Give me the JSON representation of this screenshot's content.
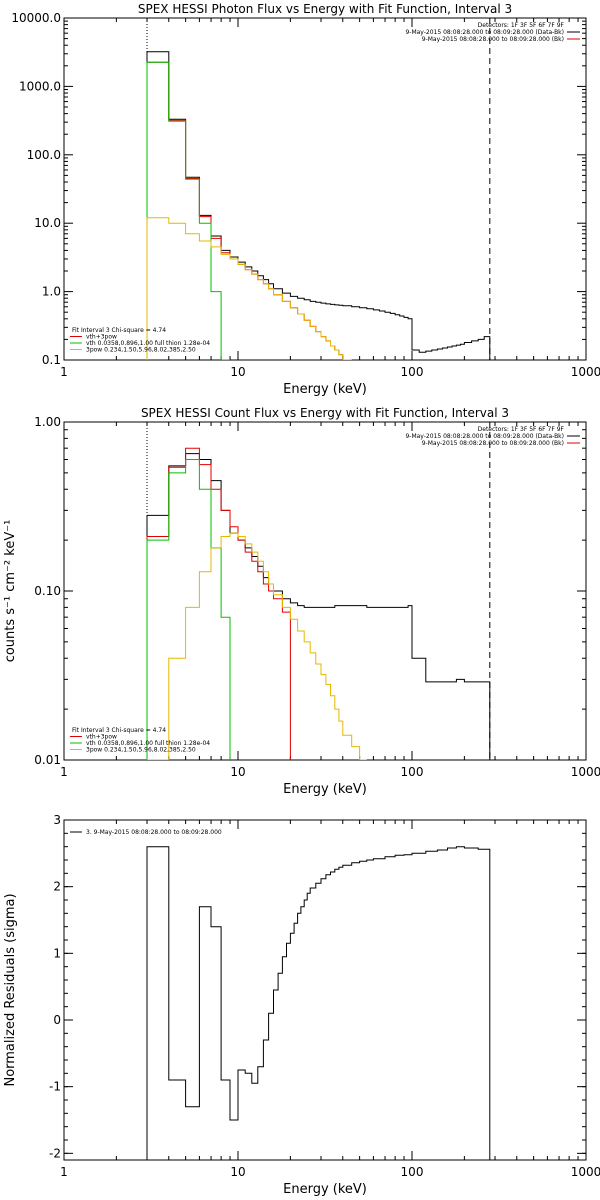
{
  "chart_data": [
    {
      "type": "line",
      "title": "SPEX HESSI Photon Flux vs Energy with Fit Function, Interval 3",
      "xlabel": "Energy (keV)",
      "ylabel": "",
      "xscale": "log",
      "yscale": "log",
      "xlim": [
        1,
        1000
      ],
      "ylim": [
        0.1,
        10000
      ],
      "x_ticks": [
        1,
        10,
        100,
        1000
      ],
      "x_tick_labels": [
        "1",
        "10",
        "100",
        "1000"
      ],
      "y_ticks": [
        0.1,
        1,
        10,
        100,
        1000,
        10000
      ],
      "y_tick_labels": [
        "0.1",
        "1.0",
        "10.0",
        "100.0",
        "1000.0",
        "10000.0"
      ],
      "vlines": [
        {
          "x": 3,
          "style": "dotted"
        },
        {
          "x": 280,
          "style": "dashed"
        }
      ],
      "info_text": [
        "Detectors: 1F 3F 5F 6F 7F 9F",
        "9-May-2015 08:08:28.000 to 08:09:28.000 (Data-Bk)",
        "9-May-2015 08:08:28.000 to 08:09:28.000 (Bk)"
      ],
      "info_colors": [
        "",
        "#000000",
        "#e00000"
      ],
      "legend_lines": [
        "Fit Interval 3   Chi-square = 4.74",
        "vth+3pow",
        "vth 0.0358,0.896,1.00  full thion 1.28e-04",
        "3pow 0.234,1.50,5.96,8.02,385,2.50"
      ],
      "legend_colors": [
        "",
        "#e00000",
        "#00c000",
        "#e6b800"
      ],
      "series": [
        {
          "color": "#000000",
          "edges": [
            3,
            4,
            5,
            6,
            7,
            8,
            9,
            10,
            11,
            12,
            13,
            14,
            15,
            16,
            18,
            20,
            22,
            24,
            26,
            28,
            30,
            32,
            34,
            36,
            38,
            40,
            45,
            50,
            55,
            60,
            65,
            70,
            75,
            80,
            85,
            90,
            95,
            100,
            110,
            120,
            130,
            140,
            150,
            160,
            170,
            180,
            190,
            200,
            220,
            240,
            260,
            280
          ],
          "values": [
            3200,
            330,
            47,
            13,
            6.5,
            4,
            3.2,
            2.7,
            2.3,
            2,
            1.7,
            1.5,
            1.3,
            1.1,
            0.95,
            0.85,
            0.8,
            0.76,
            0.72,
            0.7,
            0.68,
            0.66,
            0.65,
            0.64,
            0.63,
            0.62,
            0.6,
            0.58,
            0.56,
            0.54,
            0.52,
            0.5,
            0.48,
            0.46,
            0.44,
            0.42,
            0.4,
            0.14,
            0.13,
            0.135,
            0.14,
            0.145,
            0.15,
            0.155,
            0.16,
            0.165,
            0.17,
            0.18,
            0.19,
            0.2,
            0.22
          ]
        },
        {
          "color": "#e00000",
          "edges": [
            3,
            4,
            5,
            6,
            7,
            8,
            9,
            10,
            11,
            12,
            13,
            14,
            15,
            16,
            18,
            20,
            22,
            24,
            26,
            28,
            30,
            32,
            34,
            36,
            38,
            40,
            45
          ],
          "values": [
            2250,
            320,
            45,
            12.5,
            6,
            3.7,
            3,
            2.5,
            2.1,
            1.8,
            1.5,
            1.3,
            1.1,
            0.9,
            0.72,
            0.58,
            0.47,
            0.38,
            0.31,
            0.26,
            0.22,
            0.19,
            0.16,
            0.14,
            0.12,
            0.1
          ]
        },
        {
          "color": "#00c000",
          "edges": [
            3,
            4,
            5,
            6,
            7,
            8,
            9
          ],
          "values": [
            2250,
            310,
            44,
            10,
            1,
            0.1
          ]
        },
        {
          "color": "#e6b800",
          "edges": [
            3,
            4,
            5,
            6,
            7,
            8,
            9,
            10,
            11,
            12,
            13,
            14,
            15,
            16,
            18,
            20,
            22,
            24,
            26,
            28,
            30,
            32,
            34,
            36,
            38,
            40,
            45
          ],
          "values": [
            12,
            10,
            7,
            5.5,
            4.5,
            3.5,
            3,
            2.5,
            2.1,
            1.8,
            1.5,
            1.3,
            1.1,
            0.9,
            0.72,
            0.58,
            0.47,
            0.38,
            0.31,
            0.26,
            0.22,
            0.19,
            0.16,
            0.14,
            0.12,
            0.1
          ]
        }
      ]
    },
    {
      "type": "line",
      "title": "SPEX HESSI Count Flux vs Energy with Fit Function, Interval 3",
      "xlabel": "Energy (keV)",
      "ylabel": "counts s⁻¹ cm⁻² keV⁻¹",
      "xscale": "log",
      "yscale": "log",
      "xlim": [
        1,
        1000
      ],
      "ylim": [
        0.01,
        1
      ],
      "x_ticks": [
        1,
        10,
        100,
        1000
      ],
      "x_tick_labels": [
        "1",
        "10",
        "100",
        "1000"
      ],
      "y_ticks": [
        0.01,
        0.1,
        1
      ],
      "y_tick_labels": [
        "0.01",
        "0.10",
        "1.00"
      ],
      "vlines": [
        {
          "x": 3,
          "style": "dotted"
        },
        {
          "x": 280,
          "style": "dashed"
        }
      ],
      "info_text": [
        "Detectors: 1F 3F 5F 6F 7F 9F",
        "9-May-2015 08:08:28.000 to 08:09:28.000 (Data-Bk)",
        "9-May-2015 08:08:28.000 to 08:09:28.000 (Bk)"
      ],
      "info_colors": [
        "",
        "#000000",
        "#e00000"
      ],
      "legend_lines": [
        "Fit Interval 3   Chi-square = 4.74",
        "vth+3pow",
        "vth 0.0358,0.896,1.00  full thion 1.28e-04",
        "3pow 0.234,1.50,5.96,8.02,385,2.50"
      ],
      "legend_colors": [
        "",
        "#e00000",
        "#00c000",
        "#e6b800"
      ],
      "series": [
        {
          "color": "#000000",
          "edges": [
            3,
            4,
            5,
            6,
            7,
            8,
            9,
            10,
            11,
            12,
            13,
            14,
            15,
            16,
            18,
            20,
            22,
            24,
            26,
            28,
            30,
            32,
            34,
            36,
            38,
            40,
            45,
            50,
            55,
            60,
            65,
            70,
            75,
            80,
            85,
            90,
            95,
            100,
            120,
            140,
            160,
            180,
            200,
            240,
            280
          ],
          "values": [
            0.28,
            0.55,
            0.65,
            0.6,
            0.45,
            0.3,
            0.22,
            0.2,
            0.18,
            0.16,
            0.14,
            0.12,
            0.11,
            0.1,
            0.09,
            0.085,
            0.082,
            0.08,
            0.08,
            0.08,
            0.08,
            0.08,
            0.08,
            0.082,
            0.082,
            0.082,
            0.082,
            0.082,
            0.08,
            0.08,
            0.08,
            0.08,
            0.08,
            0.08,
            0.08,
            0.08,
            0.082,
            0.04,
            0.029,
            0.029,
            0.029,
            0.03,
            0.029,
            0.029
          ]
        },
        {
          "color": "#e00000",
          "edges": [
            3,
            4,
            5,
            6,
            7,
            8,
            9,
            10,
            11,
            12,
            13,
            14,
            15,
            16,
            18,
            20
          ],
          "values": [
            0.21,
            0.54,
            0.7,
            0.56,
            0.4,
            0.3,
            0.24,
            0.2,
            0.17,
            0.15,
            0.13,
            0.11,
            0.1,
            0.09,
            0.075
          ]
        },
        {
          "color": "#00c000",
          "edges": [
            3,
            4,
            5,
            6,
            7,
            8,
            9
          ],
          "values": [
            0.2,
            0.5,
            0.6,
            0.4,
            0.18,
            0.07,
            0.01
          ]
        },
        {
          "color": "#e6b800",
          "edges": [
            3,
            4,
            5,
            6,
            7,
            8,
            9,
            10,
            11,
            12,
            13,
            14,
            15,
            16,
            18,
            20,
            22,
            24,
            26,
            28,
            30,
            32,
            34,
            36,
            38,
            40,
            45,
            50,
            55
          ],
          "values": [
            0.01,
            0.04,
            0.08,
            0.13,
            0.18,
            0.21,
            0.22,
            0.21,
            0.19,
            0.17,
            0.15,
            0.13,
            0.11,
            0.095,
            0.08,
            0.068,
            0.058,
            0.05,
            0.043,
            0.037,
            0.032,
            0.028,
            0.024,
            0.02,
            0.017,
            0.014,
            0.012,
            0.01
          ]
        }
      ]
    },
    {
      "type": "line",
      "title": "",
      "xlabel": "Energy (keV)",
      "ylabel": "Normalized Residuals (sigma)",
      "xscale": "log",
      "yscale": "linear",
      "xlim": [
        1,
        1000
      ],
      "ylim": [
        -2.1,
        3
      ],
      "x_ticks": [
        1,
        10,
        100,
        1000
      ],
      "x_tick_labels": [
        "1",
        "10",
        "100",
        "1000"
      ],
      "y_ticks": [
        -2,
        -1,
        0,
        1,
        2,
        3
      ],
      "y_tick_labels": [
        "-2",
        "-1",
        "0",
        "1",
        "2",
        "3"
      ],
      "vlines": [],
      "info_text": [],
      "info_colors": [],
      "legend_lines": [
        "3.  9-May-2015 08:08:28.000 to 08:09:28.000"
      ],
      "legend_colors": [
        "#000000"
      ],
      "series": [
        {
          "color": "#000000",
          "edges": [
            3,
            4,
            5,
            6,
            7,
            8,
            9,
            10,
            11,
            12,
            13,
            14,
            15,
            16,
            17,
            18,
            19,
            20,
            21,
            22,
            23,
            24,
            25,
            26,
            28,
            30,
            32,
            34,
            36,
            38,
            40,
            45,
            50,
            55,
            60,
            70,
            80,
            90,
            100,
            120,
            140,
            160,
            180,
            200,
            240,
            280
          ],
          "values": [
            2.6,
            -0.9,
            -1.3,
            1.7,
            1.4,
            -0.9,
            -1.5,
            -0.75,
            -0.8,
            -0.95,
            -0.7,
            -0.3,
            0.1,
            0.45,
            0.7,
            0.95,
            1.15,
            1.3,
            1.45,
            1.6,
            1.7,
            1.8,
            1.9,
            1.98,
            2.05,
            2.12,
            2.18,
            2.22,
            2.26,
            2.29,
            2.32,
            2.36,
            2.38,
            2.4,
            2.42,
            2.45,
            2.47,
            2.48,
            2.5,
            2.53,
            2.55,
            2.58,
            2.6,
            2.58,
            2.56
          ]
        }
      ]
    }
  ]
}
